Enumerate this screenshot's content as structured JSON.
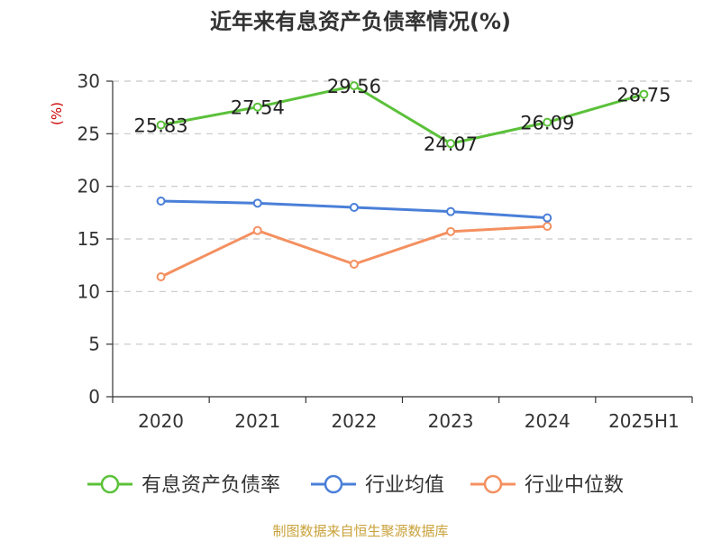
{
  "chart_data": {
    "type": "line",
    "title": "近年来有息资产负债率情况(%)",
    "ylabel": "(%)",
    "categories": [
      "2020",
      "2021",
      "2022",
      "2023",
      "2024",
      "2025H1"
    ],
    "ylim": [
      0,
      30
    ],
    "yticks": [
      0,
      5,
      10,
      15,
      20,
      25,
      30
    ],
    "grid": true,
    "legend_position": "bottom",
    "series": [
      {
        "name": "有息资产负债率",
        "color": "#5bc13a",
        "values": [
          25.83,
          27.54,
          29.56,
          24.07,
          26.09,
          28.75
        ],
        "labels": [
          "25.83",
          "27.54",
          "29.56",
          "24.07",
          "26.09",
          "28.75"
        ]
      },
      {
        "name": "行业均值",
        "color": "#4a7fd8",
        "values": [
          18.6,
          18.4,
          18.0,
          17.6,
          17.0,
          null
        ]
      },
      {
        "name": "行业中位数",
        "color": "#f49060",
        "values": [
          11.4,
          15.8,
          12.6,
          15.7,
          16.2,
          null
        ]
      }
    ],
    "source": "制图数据来自恒生聚源数据库"
  }
}
